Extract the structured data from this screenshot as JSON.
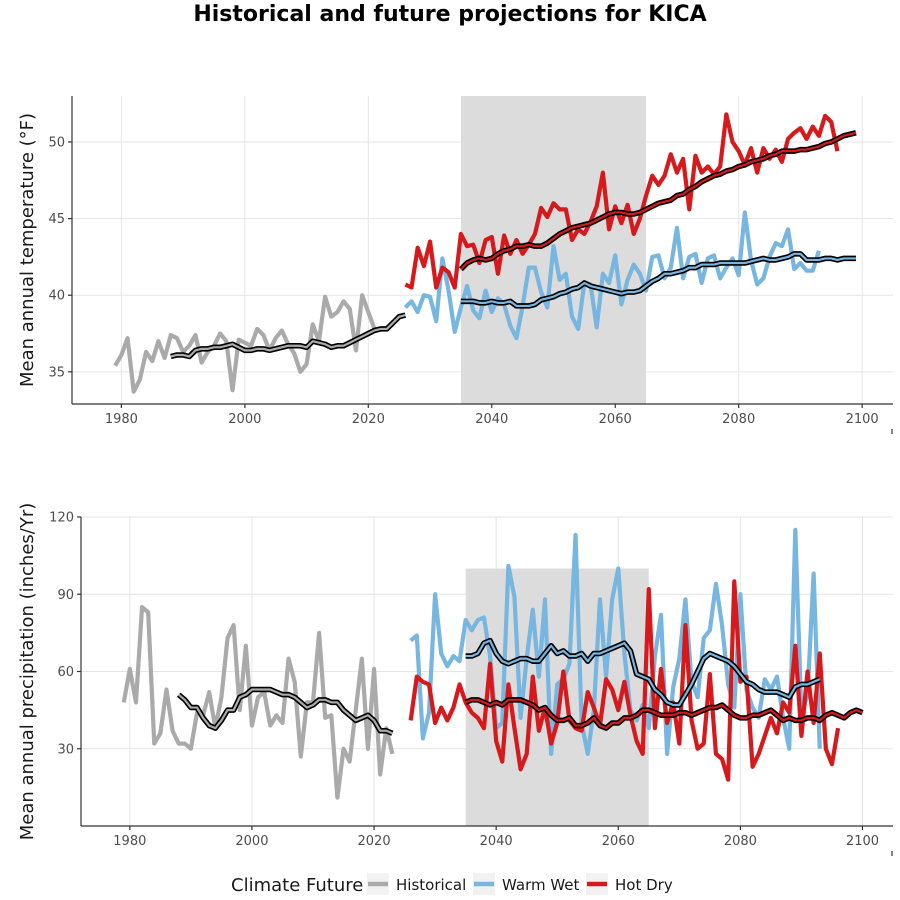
{
  "figure_title": "Historical and future projections for KICA",
  "colors": {
    "historical": "#aaaaaa",
    "warm_wet": "#77b6e0",
    "hot_dry": "#d7191c",
    "band": "#dcdcdc",
    "smooth_outline": "#000000"
  },
  "legend": {
    "title": "Climate Future",
    "items": [
      {
        "key": "historical",
        "label": "Historical",
        "color": "#aaaaaa"
      },
      {
        "key": "warm_wet",
        "label": "Warm Wet",
        "color": "#77b6e0"
      },
      {
        "key": "hot_dry",
        "label": "Hot Dry",
        "color": "#d7191c"
      }
    ]
  },
  "chart_data": [
    {
      "type": "line",
      "id": "temperature",
      "title": "",
      "xlabel": "",
      "ylabel": "Mean annual temperature (°F)",
      "xlim": [
        1972,
        2105
      ],
      "ylim": [
        32.9,
        53
      ],
      "xticks": [
        1980,
        2000,
        2020,
        2040,
        2060,
        2080,
        2100
      ],
      "yticks": [
        35,
        40,
        45,
        50
      ],
      "grid": true,
      "shaded_period": [
        2035,
        2065
      ],
      "series": [
        {
          "name": "Historical",
          "key": "historical",
          "x_start": 1979,
          "values": [
            35.4,
            36.1,
            37.2,
            33.7,
            34.5,
            36.3,
            35.7,
            37.0,
            35.9,
            37.4,
            37.2,
            36.3,
            36.7,
            37.4,
            35.6,
            36.3,
            36.7,
            37.5,
            37.0,
            33.8,
            37.1,
            36.9,
            36.7,
            37.8,
            37.4,
            36.4,
            37.2,
            37.7,
            36.8,
            36.2,
            35.0,
            35.5,
            38.1,
            37.0,
            39.9,
            38.6,
            38.9,
            39.6,
            39.1,
            36.4,
            40.0,
            38.9,
            37.8
          ]
        },
        {
          "name": "Historical smoothed",
          "key": "historical",
          "smooth": true,
          "x_start": 1988,
          "values": [
            36.0,
            36.1,
            36.1,
            36.0,
            36.4,
            36.5,
            36.5,
            36.6,
            36.6,
            36.7,
            36.8,
            36.6,
            36.4,
            36.4,
            36.5,
            36.5,
            36.4,
            36.5,
            36.6,
            36.7,
            36.7,
            36.7,
            36.6,
            37.0,
            36.9,
            36.8,
            36.6,
            36.7,
            36.7,
            36.9,
            37.1,
            37.3,
            37.5,
            37.7,
            37.8,
            37.8,
            38.2,
            38.6,
            38.7
          ]
        },
        {
          "name": "Warm Wet",
          "key": "warm_wet",
          "x_start": 2026,
          "values": [
            39.2,
            39.6,
            38.9,
            40.0,
            39.9,
            38.3,
            42.4,
            40.3,
            37.6,
            39.2,
            40.6,
            39.0,
            38.5,
            40.3,
            38.9,
            39.8,
            39.4,
            38.0,
            37.2,
            39.3,
            41.8,
            41.8,
            40.2,
            39.2,
            43.2,
            41.0,
            41.4,
            38.6,
            37.8,
            40.8,
            40.7,
            37.9,
            41.4,
            40.8,
            42.6,
            39.4,
            41.0,
            42.0,
            41.4,
            40.3,
            42.5,
            42.6,
            41.1,
            41.8,
            44.4,
            41.1,
            42.5,
            42.7,
            40.8,
            42.4,
            42.6,
            41.1,
            41.8,
            42.4,
            41.3,
            45.4,
            42.3,
            40.7,
            41.1,
            42.5,
            43.4,
            43.2,
            44.3,
            41.7,
            42.1,
            41.6,
            41.6,
            42.9
          ]
        },
        {
          "name": "Warm Wet smoothed",
          "key": "warm_wet",
          "smooth": true,
          "x_start": 2035,
          "values": [
            39.6,
            39.6,
            39.6,
            39.5,
            39.5,
            39.6,
            39.5,
            39.5,
            39.6,
            39.3,
            39.3,
            39.3,
            39.4,
            39.7,
            39.8,
            39.9,
            40.1,
            40.2,
            40.4,
            40.5,
            40.8,
            40.6,
            40.5,
            40.4,
            40.3,
            40.2,
            40.1,
            40.2,
            40.2,
            40.3,
            40.6,
            40.9,
            41.1,
            41.4,
            41.4,
            41.5,
            41.6,
            41.8,
            41.8,
            42.0,
            42.0,
            42.0,
            42.1,
            42.1,
            42.1,
            42.1,
            42.1,
            42.2,
            42.3,
            42.4,
            42.3,
            42.3,
            42.4,
            42.5,
            42.7,
            42.7,
            42.3,
            42.3,
            42.3,
            42.4,
            42.4,
            42.3,
            42.4,
            42.4,
            42.4
          ]
        },
        {
          "name": "Hot Dry",
          "key": "hot_dry",
          "x_start": 2026,
          "values": [
            40.7,
            40.5,
            43.1,
            41.9,
            43.5,
            40.5,
            41.8,
            41.5,
            40.5,
            44.0,
            43.2,
            43.3,
            42.1,
            43.6,
            43.8,
            41.4,
            43.9,
            42.7,
            43.6,
            42.7,
            43.3,
            44.0,
            45.7,
            45.1,
            46.0,
            45.6,
            45.6,
            43.6,
            44.3,
            44.0,
            44.8,
            45.8,
            48.0,
            44.3,
            45.8,
            44.7,
            45.9,
            44.0,
            45.0,
            46.5,
            47.8,
            47.2,
            47.8,
            49.2,
            48.0,
            48.9,
            45.6,
            49.1,
            48.0,
            48.4,
            47.9,
            48.4,
            51.8,
            50.0,
            49.4,
            48.5,
            49.6,
            48.0,
            49.6,
            48.9,
            49.5,
            48.7,
            50.2,
            50.6,
            50.9,
            50.2,
            51.0,
            50.4,
            51.7,
            51.3,
            49.4
          ]
        },
        {
          "name": "Hot Dry smoothed",
          "key": "hot_dry",
          "smooth": true,
          "x_start": 2035,
          "values": [
            41.7,
            42.1,
            42.3,
            42.4,
            42.3,
            42.4,
            42.7,
            42.9,
            43.0,
            43.2,
            43.2,
            43.3,
            43.2,
            43.2,
            43.4,
            43.7,
            44.0,
            44.2,
            44.4,
            44.5,
            44.6,
            44.7,
            44.9,
            45.1,
            45.3,
            45.4,
            45.4,
            45.3,
            45.3,
            45.4,
            45.6,
            45.8,
            46.0,
            46.1,
            46.2,
            46.5,
            46.6,
            46.9,
            47.1,
            47.4,
            47.6,
            47.8,
            47.9,
            48.1,
            48.2,
            48.4,
            48.5,
            48.7,
            48.8,
            48.9,
            49.1,
            49.2,
            49.4,
            49.4,
            49.4,
            49.5,
            49.5,
            49.6,
            49.7,
            49.9,
            50.0,
            50.2,
            50.4,
            50.5,
            50.6
          ]
        }
      ]
    },
    {
      "type": "line",
      "id": "precipitation",
      "title": "",
      "xlabel": "",
      "ylabel": "Mean annual precipitation (inches/Yr)",
      "xlim": [
        1972,
        2105
      ],
      "ylim": [
        0,
        120
      ],
      "xticks": [
        1980,
        2000,
        2020,
        2040,
        2060,
        2080,
        2100
      ],
      "yticks": [
        30,
        60,
        90,
        120
      ],
      "grid": true,
      "shaded_period": [
        2035,
        2065
      ],
      "shaded_top": 100,
      "series": [
        {
          "name": "Historical",
          "key": "historical",
          "x_start": 1979,
          "values": [
            48,
            61,
            48,
            85,
            83,
            32,
            36,
            53,
            37,
            32,
            32,
            30,
            44,
            43,
            52,
            38,
            50,
            73,
            78,
            45,
            70,
            39,
            50,
            52,
            39,
            43,
            40,
            65,
            56,
            27,
            48,
            48,
            75,
            42,
            43,
            11,
            30,
            25,
            45,
            65,
            30,
            61,
            20,
            38,
            28
          ]
        },
        {
          "name": "Historical smoothed",
          "key": "historical",
          "smooth": true,
          "x_start": 1988,
          "values": [
            51,
            49,
            46,
            46,
            42,
            39,
            38,
            41,
            45,
            45,
            50,
            51,
            53,
            53,
            53,
            53,
            52,
            51,
            51,
            50,
            48,
            46,
            47,
            49,
            49,
            48,
            48,
            45,
            43,
            41,
            42,
            43,
            41,
            37,
            37,
            36
          ]
        },
        {
          "name": "Warm Wet",
          "key": "warm_wet",
          "x_start": 2026,
          "values": [
            72,
            74,
            34,
            44,
            90,
            67,
            62,
            66,
            64,
            80,
            76,
            80,
            81,
            66,
            38,
            40,
            101,
            89,
            42,
            65,
            84,
            58,
            88,
            28,
            55,
            57,
            63,
            113,
            40,
            28,
            45,
            88,
            58,
            88,
            100,
            67,
            45,
            41,
            47,
            38,
            66,
            82,
            28,
            54,
            65,
            88,
            56,
            50,
            73,
            76,
            94,
            78,
            55,
            46,
            90,
            53,
            46,
            42,
            57,
            53,
            58,
            42,
            30,
            115,
            43,
            51,
            98,
            30
          ]
        },
        {
          "name": "Warm Wet smoothed",
          "key": "warm_wet",
          "smooth": true,
          "x_start": 2035,
          "values": [
            66,
            66,
            67,
            71,
            72,
            67,
            64,
            63,
            64,
            65,
            65,
            64,
            64,
            67,
            70,
            67,
            68,
            66,
            66,
            67,
            64,
            67,
            67,
            68,
            69,
            70,
            71,
            68,
            59,
            58,
            57,
            53,
            51,
            48,
            47,
            47,
            51,
            55,
            60,
            65,
            67,
            66,
            65,
            64,
            62,
            59,
            56,
            55,
            53,
            52,
            52,
            52,
            51,
            50,
            54,
            55,
            55,
            56,
            57
          ]
        },
        {
          "name": "Hot Dry",
          "key": "hot_dry",
          "x_start": 2026,
          "values": [
            41,
            58,
            56,
            55,
            40,
            46,
            41,
            46,
            55,
            48,
            44,
            42,
            38,
            63,
            33,
            25,
            55,
            38,
            22,
            28,
            58,
            37,
            46,
            32,
            40,
            60,
            41,
            38,
            37,
            52,
            46,
            39,
            57,
            53,
            45,
            56,
            43,
            33,
            28,
            92,
            38,
            61,
            40,
            48,
            32,
            78,
            41,
            30,
            32,
            59,
            28,
            26,
            18,
            95,
            56,
            58,
            23,
            28,
            35,
            42,
            36,
            48,
            44,
            70,
            35,
            60,
            40,
            67,
            30,
            24,
            38
          ]
        },
        {
          "name": "Hot Dry smoothed",
          "key": "hot_dry",
          "smooth": true,
          "x_start": 2035,
          "values": [
            48,
            49,
            49,
            48,
            47,
            48,
            47,
            49,
            49,
            49,
            48,
            47,
            45,
            46,
            43,
            41,
            41,
            42,
            39,
            39,
            40,
            42,
            39,
            38,
            40,
            40,
            42,
            42,
            43,
            45,
            45,
            44,
            43,
            43,
            43,
            44,
            44,
            43,
            44,
            45,
            46,
            46,
            47,
            45,
            43,
            42,
            42,
            43,
            43,
            44,
            45,
            43,
            41,
            42,
            41,
            41,
            42,
            42,
            41,
            43,
            44,
            43,
            42,
            44,
            45,
            44
          ]
        }
      ]
    }
  ]
}
